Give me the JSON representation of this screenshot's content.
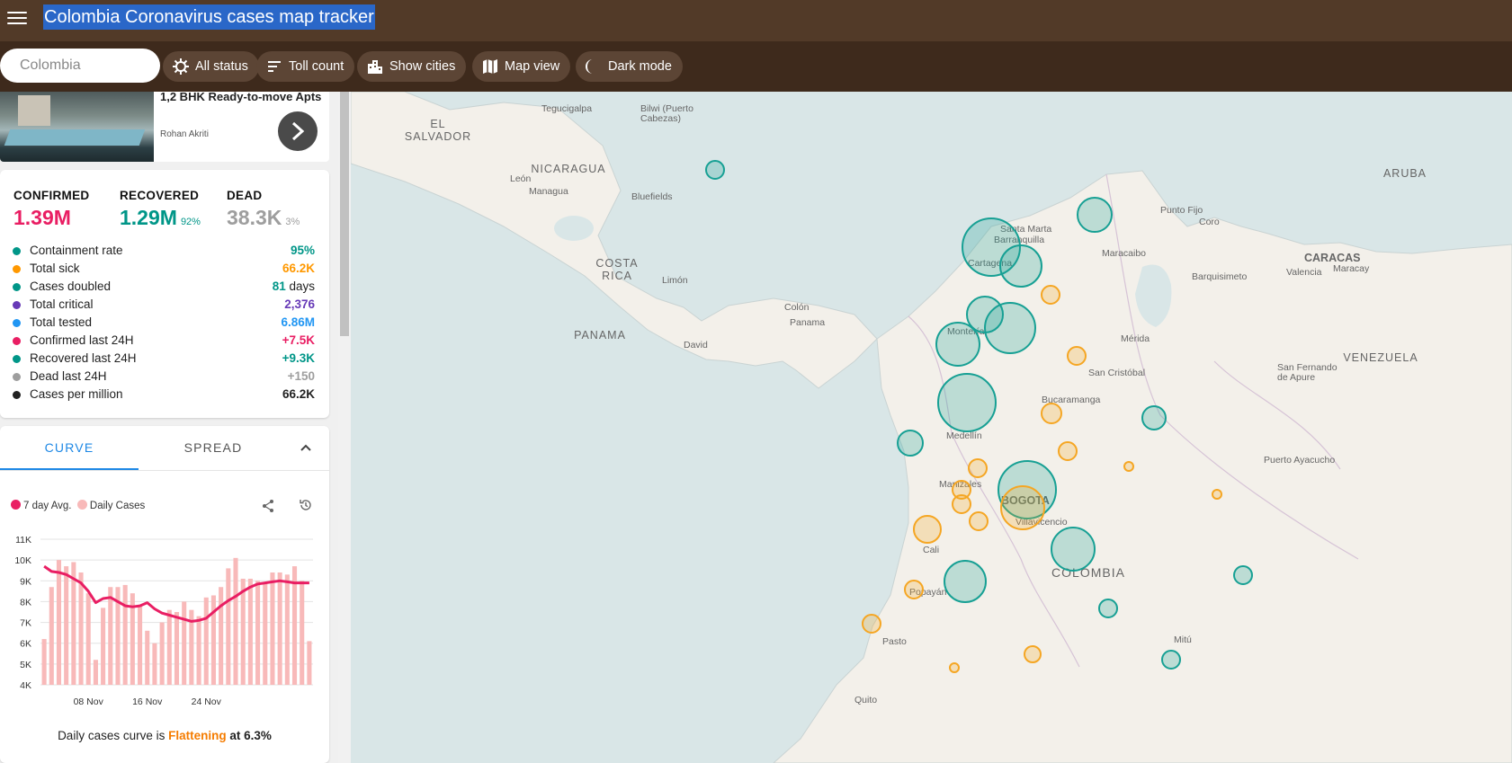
{
  "app": {
    "title": "Colombia Coronavirus cases map tracker"
  },
  "toolbar": {
    "search_placeholder": "Colombia",
    "chips": [
      {
        "label": "All status",
        "icon": "virus-icon"
      },
      {
        "label": "Toll count",
        "icon": "sort-icon"
      },
      {
        "label": "Show cities",
        "icon": "city-icon"
      },
      {
        "label": "Map view",
        "icon": "map-icon"
      },
      {
        "label": "Dark mode",
        "icon": "moon-icon"
      }
    ]
  },
  "ad": {
    "title": "1,2 BHK Ready-to-move Apts",
    "author": "Rohan Akriti"
  },
  "stats": {
    "confirmed": {
      "label": "CONFIRMED",
      "value": "1.39M",
      "color": "#e91e63"
    },
    "recovered": {
      "label": "RECOVERED",
      "value": "1.29M",
      "pct": "92%",
      "color": "#009688"
    },
    "dead": {
      "label": "DEAD",
      "value": "38.3K",
      "pct": "3%",
      "color": "#9e9e9e"
    },
    "metrics": [
      {
        "label": "Containment rate",
        "value": "95%",
        "color": "#009688"
      },
      {
        "label": "Total sick",
        "value": "66.2K",
        "color": "#ff9800"
      },
      {
        "label": "Cases doubled",
        "value": "81",
        "unit": "days",
        "color": "#009688"
      },
      {
        "label": "Total critical",
        "value": "2,376",
        "color": "#673ab7"
      },
      {
        "label": "Total tested",
        "value": "6.86M",
        "color": "#2196f3"
      },
      {
        "label": "Confirmed last 24H",
        "value": "+7.5K",
        "color": "#e91e63"
      },
      {
        "label": "Recovered last 24H",
        "value": "+9.3K",
        "color": "#009688"
      },
      {
        "label": "Dead last 24H",
        "value": "+150",
        "color": "#9e9e9e"
      },
      {
        "label": "Cases per million",
        "value": "66.2K",
        "color": "#222222"
      }
    ]
  },
  "tabs": {
    "curve": "CURVE",
    "spread": "SPREAD"
  },
  "chart_legend": {
    "avg": "7 day Avg.",
    "daily": "Daily Cases"
  },
  "chart_data": {
    "type": "bar",
    "ylim": [
      4000,
      11000
    ],
    "yticks": [
      "4K",
      "5K",
      "6K",
      "7K",
      "8K",
      "9K",
      "10K",
      "11K"
    ],
    "xticks": [
      "08 Nov",
      "16 Nov",
      "24 Nov"
    ],
    "xtick_index": [
      6,
      14,
      22
    ],
    "series": [
      {
        "name": "Daily Cases",
        "color": "#f8b9b9",
        "values": [
          6200,
          8700,
          10000,
          9700,
          9900,
          9400,
          8400,
          5200,
          7700,
          8700,
          8700,
          8800,
          8400,
          7800,
          6600,
          6000,
          7000,
          7600,
          7500,
          8000,
          7600,
          7300,
          8200,
          8300,
          8700,
          9600,
          10100,
          9100,
          9100,
          9000,
          8900,
          9400,
          9400,
          9300,
          9700,
          9000,
          6100
        ]
      },
      {
        "name": "7 day Avg.",
        "color": "#e91e63",
        "values": [
          9700,
          9450,
          9400,
          9300,
          9100,
          8900,
          8500,
          7950,
          8150,
          8200,
          8000,
          7800,
          7750,
          7800,
          7950,
          7650,
          7450,
          7350,
          7250,
          7150,
          7050,
          7100,
          7200,
          7500,
          7800,
          8050,
          8250,
          8500,
          8700,
          8850,
          8900,
          8950,
          9000,
          8950,
          8900,
          8900,
          8900
        ]
      }
    ]
  },
  "summary": {
    "prefix": "Daily cases curve is",
    "trend": "Flattening",
    "suffix": "at 6.3%"
  },
  "map": {
    "countries": [
      "EL SALVADOR",
      "NICARAGUA",
      "COSTA RICA",
      "PANAMA",
      "ARUBA",
      "VENEZUELA",
      "COLOMBIA"
    ],
    "cities": [
      "Tegucigalpa",
      "Bilwi (Puerto Cabezas)",
      "León",
      "Managua",
      "Bluefields",
      "Limón",
      "Colón",
      "Panama",
      "David",
      "Santa Marta",
      "Barranquilla",
      "Cartagena",
      "Montería",
      "Maracaibo",
      "Punto Fijo",
      "Coro",
      "Barquisimeto",
      "Valencia",
      "CARACAS",
      "Maracay",
      "San Cristóbal",
      "Mérida",
      "Bucaramanga",
      "Medellín",
      "Manizales",
      "BOGOTA",
      "Villavicencio",
      "Cali",
      "Popayán",
      "Pasto",
      "Mitú",
      "Quito",
      "San Fernando de Apure",
      "Puerto Ayacucho"
    ],
    "colors": {
      "recovered": "#17a094",
      "sick": "#f5a623"
    }
  }
}
